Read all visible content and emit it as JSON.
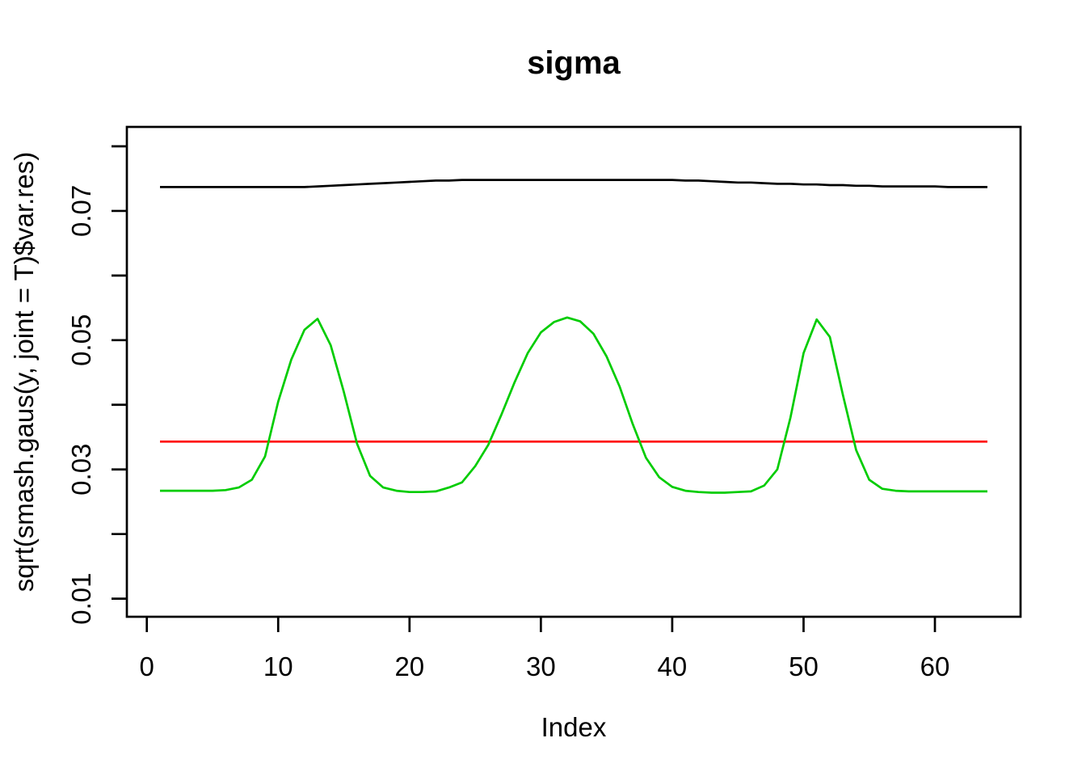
{
  "chart_data": {
    "type": "line",
    "title": "sigma",
    "xlabel": "Index",
    "ylabel": "sqrt(smash.gaus(y, joint = T)$var.res)",
    "xlim": [
      -1.52,
      66.52
    ],
    "ylim": [
      0.0072,
      0.083
    ],
    "grid": false,
    "legend": null,
    "x_ticks": [
      0,
      10,
      20,
      30,
      40,
      50,
      60
    ],
    "x_tick_labels": [
      "0",
      "10",
      "20",
      "30",
      "40",
      "50",
      "60"
    ],
    "y_ticks": [
      0.01,
      0.02,
      0.03,
      0.04,
      0.05,
      0.06,
      0.07,
      0.08
    ],
    "y_tick_labels": [
      "0.01",
      "",
      "0.03",
      "",
      "0.05",
      "",
      "0.07",
      ""
    ],
    "axis_color": "#000000",
    "x": [
      1,
      2,
      3,
      4,
      5,
      6,
      7,
      8,
      9,
      10,
      11,
      12,
      13,
      14,
      15,
      16,
      17,
      18,
      19,
      20,
      21,
      22,
      23,
      24,
      25,
      26,
      27,
      28,
      29,
      30,
      31,
      32,
      33,
      34,
      35,
      36,
      37,
      38,
      39,
      40,
      41,
      42,
      43,
      44,
      45,
      46,
      47,
      48,
      49,
      50,
      51,
      52,
      53,
      54,
      55,
      56,
      57,
      58,
      59,
      60,
      61,
      62,
      63,
      64
    ],
    "series": [
      {
        "name": "black-line",
        "color": "#000000",
        "values": [
          0.0737,
          0.0737,
          0.0737,
          0.0737,
          0.0737,
          0.0737,
          0.0737,
          0.0737,
          0.0737,
          0.0737,
          0.0737,
          0.0737,
          0.0738,
          0.0739,
          0.074,
          0.0741,
          0.0742,
          0.0743,
          0.0744,
          0.0745,
          0.0746,
          0.0747,
          0.0747,
          0.0748,
          0.0748,
          0.0748,
          0.0748,
          0.0748,
          0.0748,
          0.0748,
          0.0748,
          0.0748,
          0.0748,
          0.0748,
          0.0748,
          0.0748,
          0.0748,
          0.0748,
          0.0748,
          0.0748,
          0.0747,
          0.0747,
          0.0746,
          0.0745,
          0.0744,
          0.0744,
          0.0743,
          0.0742,
          0.0742,
          0.0741,
          0.0741,
          0.074,
          0.074,
          0.0739,
          0.0739,
          0.0738,
          0.0738,
          0.0738,
          0.0738,
          0.0738,
          0.0737,
          0.0737,
          0.0737,
          0.0737
        ]
      },
      {
        "name": "red-line",
        "color": "#FF0000",
        "values": [
          0.0343,
          0.0343,
          0.0343,
          0.0343,
          0.0343,
          0.0343,
          0.0343,
          0.0343,
          0.0343,
          0.0343,
          0.0343,
          0.0343,
          0.0343,
          0.0343,
          0.0343,
          0.0343,
          0.0343,
          0.0343,
          0.0343,
          0.0343,
          0.0343,
          0.0343,
          0.0343,
          0.0343,
          0.0343,
          0.0343,
          0.0343,
          0.0343,
          0.0343,
          0.0343,
          0.0343,
          0.0343,
          0.0343,
          0.0343,
          0.0343,
          0.0343,
          0.0343,
          0.0343,
          0.0343,
          0.0343,
          0.0343,
          0.0343,
          0.0343,
          0.0343,
          0.0343,
          0.0343,
          0.0343,
          0.0343,
          0.0343,
          0.0343,
          0.0343,
          0.0343,
          0.0343,
          0.0343,
          0.0343,
          0.0343,
          0.0343,
          0.0343,
          0.0343,
          0.0343,
          0.0343,
          0.0343,
          0.0343,
          0.0343
        ]
      },
      {
        "name": "green-line",
        "color": "#00CC00",
        "values": [
          0.0267,
          0.0267,
          0.0267,
          0.0267,
          0.0267,
          0.0268,
          0.0272,
          0.0284,
          0.032,
          0.0405,
          0.047,
          0.0516,
          0.0533,
          0.0492,
          0.042,
          0.034,
          0.029,
          0.0272,
          0.0267,
          0.0265,
          0.0265,
          0.0266,
          0.0272,
          0.028,
          0.0305,
          0.0338,
          0.0385,
          0.0435,
          0.048,
          0.0512,
          0.0528,
          0.0535,
          0.0529,
          0.051,
          0.0475,
          0.0428,
          0.037,
          0.0318,
          0.0288,
          0.0273,
          0.0267,
          0.0265,
          0.0264,
          0.0264,
          0.0265,
          0.0266,
          0.0275,
          0.03,
          0.038,
          0.048,
          0.0532,
          0.0505,
          0.0415,
          0.033,
          0.0284,
          0.027,
          0.0267,
          0.0266,
          0.0266,
          0.0266,
          0.0266,
          0.0266,
          0.0266,
          0.0266
        ]
      }
    ]
  }
}
